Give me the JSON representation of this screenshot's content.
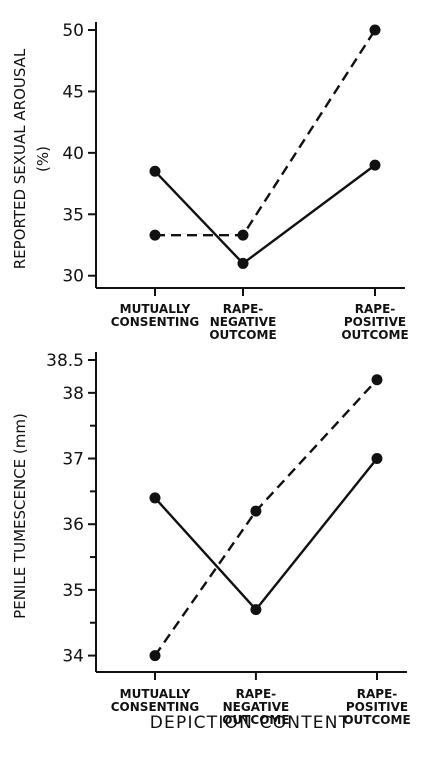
{
  "chart_data": [
    {
      "type": "line",
      "title": "",
      "xlabel": "",
      "ylabel": "REPORTED SEXUAL AROUSAL",
      "ylabel_unit": "(%)",
      "categories": [
        [
          "MUTUALLY",
          "CONSENTING"
        ],
        [
          "RAPE-",
          "NEGATIVE",
          "OUTCOME"
        ],
        [
          "RAPE-",
          "POSITIVE",
          "OUTCOME"
        ]
      ],
      "x": [
        1,
        2,
        3.5
      ],
      "ylim": [
        29,
        50
      ],
      "yticks": [
        30,
        35,
        40,
        45,
        50
      ],
      "ytick_labels": [
        "30",
        "35",
        "40",
        "45",
        "50"
      ],
      "yticks_minor": [],
      "grid": false,
      "series": [
        {
          "style": "solid",
          "values": [
            38.5,
            31,
            39
          ]
        },
        {
          "style": "dashed",
          "values": [
            33.3,
            33.3,
            50
          ]
        }
      ]
    },
    {
      "type": "line",
      "title": "",
      "xlabel": "",
      "ylabel": "PENILE TUMESCENCE (mm)",
      "categories": [
        [
          "MUTUALLY",
          "CONSENTING"
        ],
        [
          "RAPE-",
          "NEGATIVE",
          "OUTCOME"
        ],
        [
          "RAPE-",
          "POSITIVE",
          "OUTCOME"
        ]
      ],
      "x": [
        1,
        2,
        3.2
      ],
      "ylim": [
        33.75,
        38.5
      ],
      "yticks": [
        34,
        35,
        36,
        37,
        38,
        38.5
      ],
      "ytick_labels": [
        "34",
        "35",
        "36",
        "37",
        "38",
        "38.5"
      ],
      "yticks_minor": [
        34.5,
        35.5,
        36.5,
        37.5
      ],
      "grid": false,
      "series": [
        {
          "style": "solid",
          "values": [
            36.4,
            34.7,
            37
          ]
        },
        {
          "style": "dashed",
          "values": [
            34,
            36.2,
            38.2
          ]
        }
      ]
    }
  ],
  "figure_xlabel": "DEPICTION CONTENT"
}
